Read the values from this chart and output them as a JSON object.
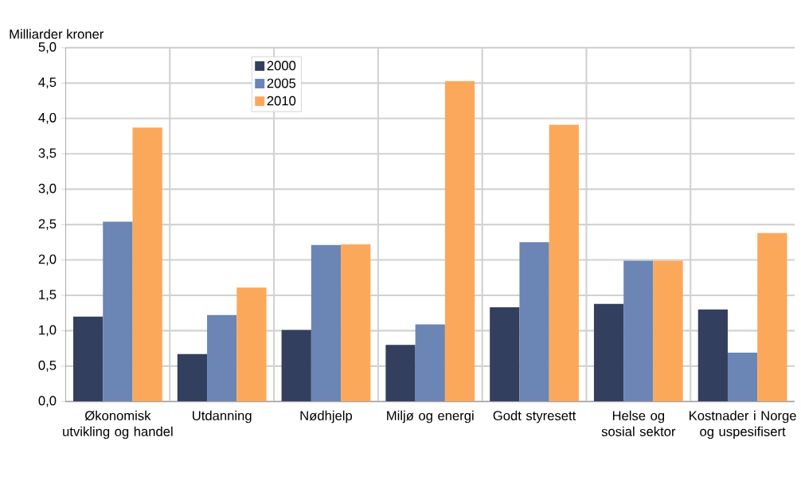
{
  "chart_data": {
    "type": "bar",
    "ylabel": "Milliarder kroner",
    "categories": [
      "Økonomisk utvikling og handel",
      "Utdanning",
      "Nødhjelp",
      "Miljø og energi",
      "Godt styresett",
      "Helse og sosial sektor",
      "Kostnader i Norge og uspesifisert"
    ],
    "series": [
      {
        "name": "2000",
        "color": "#333f5f",
        "values": [
          1.2,
          0.67,
          1.01,
          0.8,
          1.33,
          1.38,
          1.3
        ]
      },
      {
        "name": "2005",
        "color": "#6b85b5",
        "values": [
          2.54,
          1.22,
          2.21,
          1.09,
          2.25,
          1.99,
          0.69
        ]
      },
      {
        "name": "2010",
        "color": "#fca85a",
        "values": [
          3.87,
          1.61,
          2.22,
          4.53,
          3.91,
          1.99,
          2.38
        ]
      }
    ],
    "ylim": [
      0,
      5
    ],
    "yticks": [
      {
        "value": 0,
        "label": "0,0"
      },
      {
        "value": 0.5,
        "label": "0,5"
      },
      {
        "value": 1,
        "label": "1,0"
      },
      {
        "value": 1.5,
        "label": "1,5"
      },
      {
        "value": 2,
        "label": "2,0"
      },
      {
        "value": 2.5,
        "label": "2,5"
      },
      {
        "value": 3,
        "label": "3,0"
      },
      {
        "value": 3.5,
        "label": "3,5"
      },
      {
        "value": 4,
        "label": "4,0"
      },
      {
        "value": 4.5,
        "label": "4,5"
      },
      {
        "value": 5,
        "label": "5,0"
      }
    ],
    "grid": true,
    "legend": "top left"
  }
}
